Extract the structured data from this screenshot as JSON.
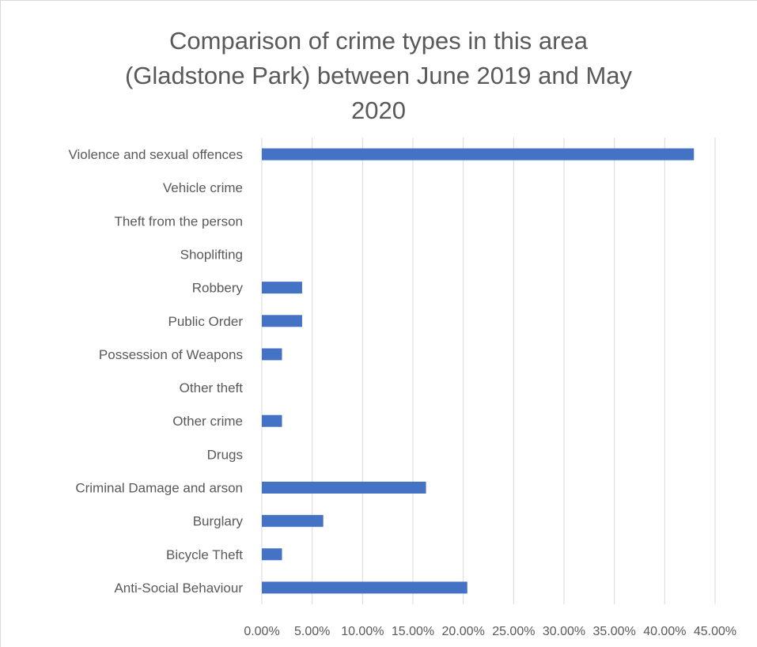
{
  "chart_data": {
    "type": "bar",
    "orientation": "horizontal",
    "title_lines": [
      "Comparison of crime types in this area",
      "(Gladstone Park) between June 2019 and May",
      "2020"
    ],
    "categories": [
      "Violence and sexual offences",
      "Vehicle crime",
      "Theft from the person",
      "Shoplifting",
      "Robbery",
      "Public Order",
      "Possession of Weapons",
      "Other theft",
      "Other crime",
      "Drugs",
      "Criminal Damage and arson",
      "Burglary",
      "Bicycle Theft",
      "Anti-Social Behaviour"
    ],
    "values": [
      0.429,
      0,
      0,
      0,
      0.04,
      0.04,
      0.02,
      0,
      0.02,
      0,
      0.163,
      0.061,
      0.02,
      0.204
    ],
    "x_ticks": [
      0,
      0.05,
      0.1,
      0.15,
      0.2,
      0.25,
      0.3,
      0.35,
      0.4,
      0.45
    ],
    "x_tick_labels": [
      "0.00%",
      "5.00%",
      "10.00%",
      "15.00%",
      "20.00%",
      "25.00%",
      "30.00%",
      "35.00%",
      "40.00%",
      "45.00%"
    ],
    "xlim": [
      0,
      0.45
    ],
    "grid": "vertical",
    "legend": "none",
    "bar_color": "#4472c4",
    "gridline_color": "#d9d9d9",
    "text_color": "#595959"
  }
}
